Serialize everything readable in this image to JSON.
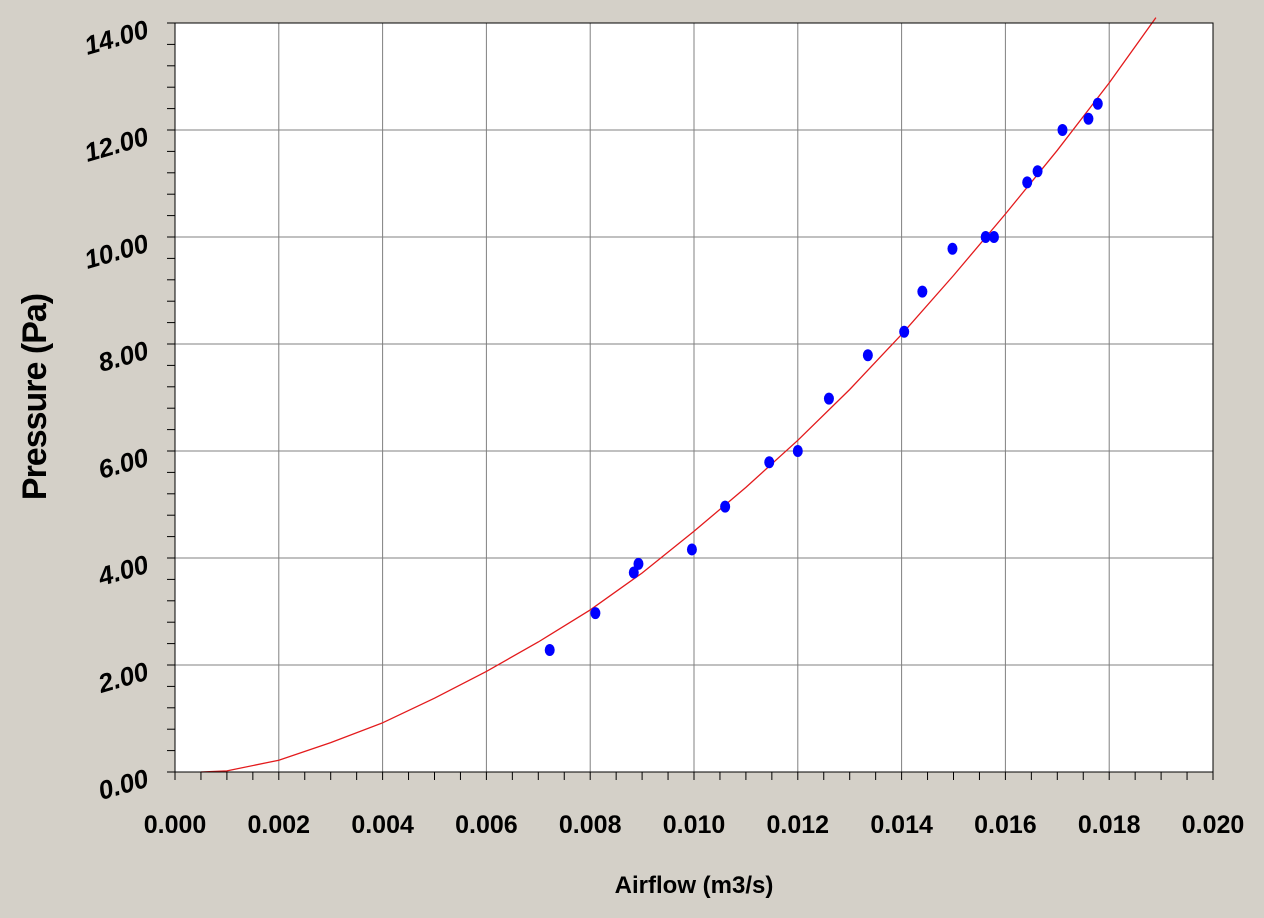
{
  "chart_data": {
    "type": "scatter",
    "title": "",
    "xlabel": "Airflow (m3/s)",
    "ylabel": "Pressure (Pa)",
    "xlim": [
      0.0,
      0.02
    ],
    "ylim": [
      0.0,
      14.0
    ],
    "x_ticks": [
      "0.000",
      "0.002",
      "0.004",
      "0.006",
      "0.008",
      "0.010",
      "0.012",
      "0.014",
      "0.016",
      "0.018",
      "0.020"
    ],
    "y_ticks": [
      "0.00",
      "2.00",
      "4.00",
      "6.00",
      "8.00",
      "10.00",
      "12.00",
      "14.00"
    ],
    "grid": true,
    "legend": "none",
    "colors": {
      "points": "#0000ff",
      "fit": "#e31a1c",
      "plot_bg": "#ffffff",
      "page_bg": "#d4d0c8",
      "grid": "#808080"
    },
    "series": [
      {
        "kind": "points",
        "x": [
          0.00722,
          0.0081,
          0.00884,
          0.00893,
          0.00996,
          0.0106,
          0.01145,
          0.012,
          0.0126,
          0.01335,
          0.01405,
          0.0144,
          0.01498,
          0.01562,
          0.01578,
          0.01642,
          0.01662,
          0.0171,
          0.0176,
          0.01778
        ],
        "y": [
          2.28,
          2.97,
          3.73,
          3.89,
          4.16,
          4.96,
          5.79,
          6.0,
          6.98,
          7.79,
          8.23,
          8.98,
          9.78,
          10.0,
          10.0,
          11.02,
          11.23,
          12.0,
          12.21,
          12.49
        ]
      },
      {
        "kind": "fit",
        "x": [
          0.0005,
          0.001,
          0.002,
          0.003,
          0.004,
          0.005,
          0.006,
          0.007,
          0.008,
          0.009,
          0.01,
          0.011,
          0.012,
          0.013,
          0.014,
          0.015,
          0.016,
          0.017,
          0.018,
          0.0189
        ],
        "y": [
          0.0,
          0.02,
          0.22,
          0.55,
          0.92,
          1.38,
          1.88,
          2.43,
          3.03,
          3.72,
          4.5,
          5.32,
          6.2,
          7.15,
          8.18,
          9.28,
          10.43,
          11.62,
          12.88,
          14.1
        ]
      }
    ]
  }
}
